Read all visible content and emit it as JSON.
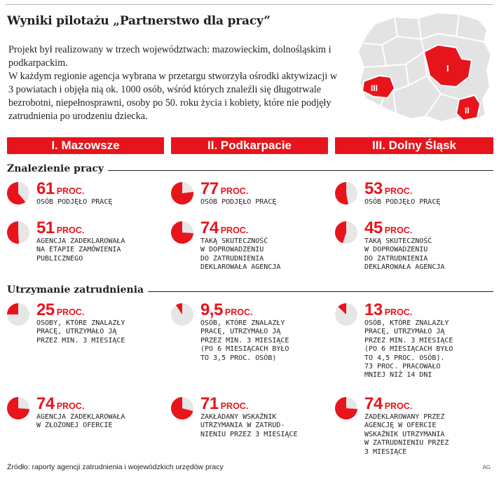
{
  "title": "Wyniki pilotażu „Partnerstwo dla pracy”",
  "intro": [
    "Projekt był realizowany w trzech województwach: mazowieckim, dolnośląskim i podkarpackim.",
    "W każdym regionie agencja wybrana w przetargu stworzyła ośrodki aktywizacji w 3 powiatach i objęła nią ok. 1000 osób, wśród których znaleźli się długotrwale bezrobotni, niepełnosprawni, osoby po 50. roku życia i kobiety, które nie podjęły zatrudnienia po urodzeniu dziecka."
  ],
  "map": {
    "labels": [
      "I",
      "II",
      "III"
    ]
  },
  "regions": [
    "I. Mazowsze",
    "II. Podkarpacie",
    "III. Dolny Śląsk"
  ],
  "sections": {
    "finding": "Znalezienie pracy",
    "retention": "Utrzymanie zatrudnienia"
  },
  "unit": "PROC.",
  "colors": {
    "accent": "#e8141c",
    "pie_rest": "#e6e6e6"
  },
  "chart_data": {
    "type": "pie",
    "unit": "PROC.",
    "categories": [
      "I. Mazowsze",
      "II. Podkarpacie",
      "III. Dolny Śląsk"
    ],
    "groups": [
      {
        "name": "Znalezienie pracy",
        "rows": [
          {
            "items": [
              {
                "value": 61,
                "label": "OSÓB PODJĘŁO PRACĘ"
              },
              {
                "value": 77,
                "label": "OSÓB PODJĘŁO PRACĘ"
              },
              {
                "value": 53,
                "label": "OSÓB PODJĘŁO PRACĘ"
              }
            ]
          },
          {
            "items": [
              {
                "value": 51,
                "label": "AGENCJA ZADEKLAROWAŁA\nNA ETAPIE ZAMÓWIENIA\nPUBLICZNEGO"
              },
              {
                "value": 74,
                "label": "TAKĄ SKUTECZNOŚĆ\nW DOPROWADZENIU\nDO ZATRUDNIENIA\nDEKLAROWAŁA AGENCJA"
              },
              {
                "value": 45,
                "label": "TAKĄ SKUTECZNOŚĆ\nW DOPROWADZENIU\nDO ZATRUDNIENIA\nDEKLAROWAŁA AGENCJA"
              }
            ]
          }
        ]
      },
      {
        "name": "Utrzymanie zatrudnienia",
        "rows": [
          {
            "items": [
              {
                "value": 25,
                "label": "OSOBY, KTÓRE ZNALAZŁY\nPRACĘ, UTRZYMAŁO JĄ\nPRZEZ MIN. 3 MIESIĄCE"
              },
              {
                "value": 9.5,
                "display": "9,5",
                "label": "OSÓB, KTÓRE ZNALAZŁY\nPRACĘ, UTRZYMAŁO JĄ\nPRZEZ MIN. 3 MIESIĄCE\n(PO 6 MIESIĄCACH BYŁO\nTO 3,5 PROC. OSÓB)"
              },
              {
                "value": 13,
                "label": "OSÓB, KTÓRE ZNALAZŁY\nPRACĘ, UTRZYMAŁO JĄ\nPRZEZ MIN. 3 MIESIĄCE\n(PO 6 MIESIĄCACH BYŁO\nTO 4,5 PROC. OSÓB).\n73 PROC. PRACOWAŁO\nMNIEJ NIŻ 14 DNI"
              }
            ]
          },
          {
            "items": [
              {
                "value": 74,
                "label": "AGENCJA ZADEKLAROWAŁA\nW ZŁOŻONEJ OFERCIE"
              },
              {
                "value": 71,
                "label": "ZAKŁADANY WSKAŹNIK\nUTRZYMANIA W ZATRUD-\nNIENIU PRZEZ 3 MIESIĄCE"
              },
              {
                "value": 74,
                "label": "ZADEKLAROWANY PRZEZ\nAGENCJĘ W OFERCIE\nWSKAŹNIK UTRZYMANIA\nW ZATRUDNIENIU PRZEZ\n3 MIESIĄCE"
              }
            ]
          }
        ]
      }
    ]
  },
  "source": "Źródło: raporty agencji zatrudnienia i wojewódzkich urzędów pracy",
  "credit": "AG"
}
